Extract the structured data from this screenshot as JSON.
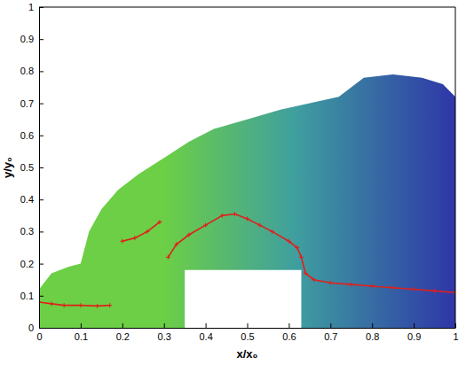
{
  "chart_data": {
    "type": "line",
    "x_label": "x/x₀",
    "y_label": "y/y₀",
    "xlim": [
      0,
      1
    ],
    "ylim": [
      0,
      1
    ],
    "xticks": [
      0,
      0.1,
      0.2,
      0.3,
      0.4,
      0.5,
      0.6,
      0.7,
      0.8,
      0.9,
      1
    ],
    "yticks": [
      0,
      0.1,
      0.2,
      0.3,
      0.4,
      0.5,
      0.6,
      0.7,
      0.8,
      0.9,
      1
    ],
    "grid": false,
    "series": [
      {
        "type": "area",
        "color": "#6ccf45",
        "x": [
          0,
          0,
          0.03,
          0.07,
          0.1,
          0.12,
          0.15,
          0.19,
          0.24,
          0.3,
          0.36,
          0.42,
          0.5,
          0.58,
          0.65,
          0.72,
          0.78,
          0.85,
          0.92,
          0.97,
          1,
          1,
          0.63,
          0.63,
          0.35,
          0.35
        ],
        "values": [
          0,
          0.12,
          0.17,
          0.19,
          0.2,
          0.3,
          0.37,
          0.43,
          0.48,
          0.53,
          0.58,
          0.62,
          0.65,
          0.68,
          0.7,
          0.72,
          0.78,
          0.79,
          0.78,
          0.76,
          0.72,
          0,
          0,
          0.18,
          0.18,
          0
        ]
      },
      {
        "type": "line",
        "color": "#e0201b",
        "marker": "plus",
        "x": [
          0,
          0.03,
          0.06,
          0.1,
          0.14,
          0.17,
          0.185,
          0.2,
          0.23,
          0.26,
          0.29,
          0.3,
          0.31,
          0.33,
          0.36,
          0.4,
          0.44,
          0.47,
          0.5,
          0.53,
          0.56,
          0.6,
          0.62,
          0.63,
          0.64,
          0.66,
          0.7,
          0.75,
          0.8,
          0.85,
          0.9,
          0.95,
          1
        ],
        "values": [
          0.08,
          0.075,
          0.07,
          0.07,
          0.068,
          0.07,
          null,
          0.27,
          0.28,
          0.3,
          0.33,
          null,
          0.22,
          0.26,
          0.29,
          0.32,
          0.35,
          0.355,
          0.34,
          0.32,
          0.3,
          0.27,
          0.25,
          0.22,
          0.17,
          0.15,
          0.14,
          0.135,
          0.13,
          0.125,
          0.12,
          0.115,
          0.11
        ]
      }
    ]
  }
}
